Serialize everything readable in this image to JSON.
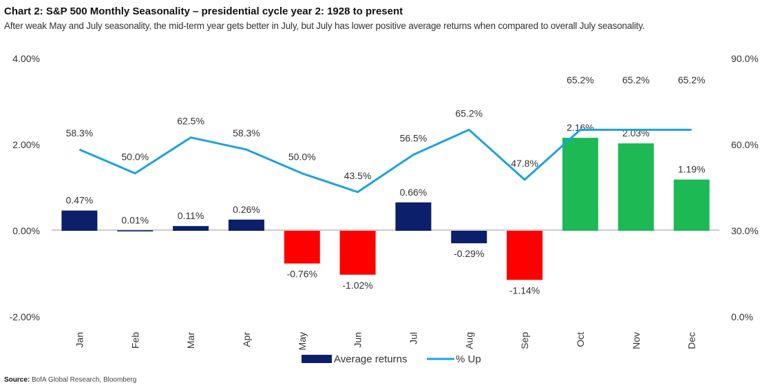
{
  "header": {
    "title": "Chart 2: S&P 500 Monthly Seasonality – presidential cycle year 2: 1928  to present",
    "subtitle": "After weak May and July seasonality, the mid-term year gets better in July, but July has lower positive average returns when compared to overall July seasonality."
  },
  "footer": {
    "source_label": "Source:",
    "source_text": "BofA Global Research, Bloomberg"
  },
  "chart_data": {
    "type": "bar",
    "title": "Chart 2: S&P 500 Monthly Seasonality – presidential cycle year 2: 1928  to present",
    "categories": [
      "Jan",
      "Feb",
      "Mar",
      "Apr",
      "May",
      "Jun",
      "Jul",
      "Aug",
      "Sep",
      "Oct",
      "Nov",
      "Dec"
    ],
    "series": [
      {
        "name": "Average returns",
        "type": "bar",
        "axis": "left",
        "values": [
          0.47,
          0.01,
          0.11,
          0.26,
          -0.76,
          -1.02,
          0.66,
          -0.29,
          -1.14,
          2.16,
          2.03,
          1.19
        ],
        "labels": [
          "0.47%",
          "0.01%",
          "0.11%",
          "0.26%",
          "-0.76%",
          "-1.02%",
          "0.66%",
          "-0.29%",
          "-1.14%",
          "2.16%",
          "2.03%",
          "1.19%"
        ],
        "colors": [
          "#0b1f6b",
          "#0b1f6b",
          "#0b1f6b",
          "#0b1f6b",
          "#ff0000",
          "#ff0000",
          "#0b1f6b",
          "#0b1f6b",
          "#ff0000",
          "#1db954",
          "#1db954",
          "#1db954"
        ]
      },
      {
        "name": "% Up",
        "type": "line",
        "axis": "right",
        "values": [
          58.3,
          50.0,
          62.5,
          58.3,
          50.0,
          43.5,
          56.5,
          65.2,
          47.8,
          65.2,
          65.2,
          65.2
        ],
        "labels": [
          "58.3%",
          "50.0%",
          "62.5%",
          "58.3%",
          "50.0%",
          "43.5%",
          "56.5%",
          "65.2%",
          "47.8%",
          "65.2%",
          "65.2%",
          "65.2%"
        ],
        "color": "#1ba1e2"
      }
    ],
    "left_axis": {
      "ylim": [
        -2.0,
        4.0
      ],
      "ticks": [
        4.0,
        2.0,
        0.0,
        -2.0
      ],
      "tick_labels": [
        "4.00%",
        "2.00%",
        "0.00%",
        "-2.00%"
      ]
    },
    "right_axis": {
      "ylim": [
        0.0,
        90.0
      ],
      "ticks": [
        90.0,
        60.0,
        30.0,
        0.0
      ],
      "tick_labels": [
        "90.0%",
        "60.0%",
        "30.0%",
        "0.0%"
      ]
    },
    "grid": false,
    "legend": {
      "position": "bottom",
      "entries": [
        "Average returns",
        "% Up"
      ]
    }
  }
}
